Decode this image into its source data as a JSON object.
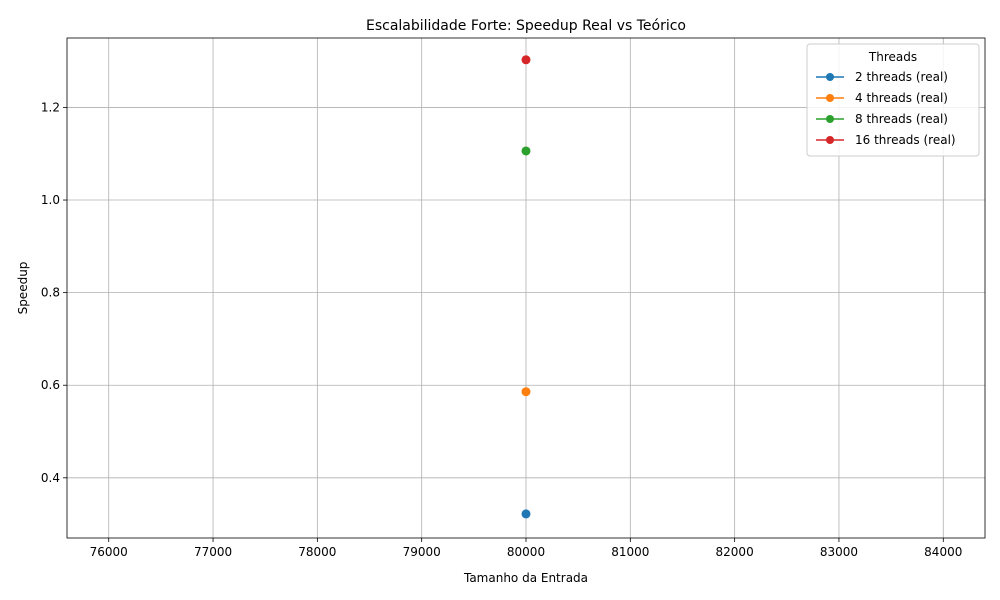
{
  "chart_data": {
    "type": "line",
    "title": "Escalabilidade Forte: Speedup Real vs Teórico",
    "xlabel": "Tamanho da Entrada",
    "ylabel": "Speedup",
    "xlim": [
      75600,
      84400
    ],
    "ylim": [
      0.27,
      1.35
    ],
    "xticks": [
      76000,
      77000,
      78000,
      79000,
      80000,
      81000,
      82000,
      83000,
      84000
    ],
    "yticks": [
      0.4,
      0.6,
      0.8,
      1.0,
      1.2
    ],
    "ytick_labels": [
      "0.4",
      "0.6",
      "0.8",
      "1.0",
      "1.2"
    ],
    "grid": true,
    "legend": {
      "title": "Threads",
      "placement": "top-right"
    },
    "series": [
      {
        "name": "2 threads (real)",
        "color": "#1f77b4",
        "x": [
          80000
        ],
        "y": [
          0.322
        ]
      },
      {
        "name": "4 threads (real)",
        "color": "#ff7f0e",
        "x": [
          80000
        ],
        "y": [
          0.586
        ]
      },
      {
        "name": "8 threads (real)",
        "color": "#2ca02c",
        "x": [
          80000
        ],
        "y": [
          1.106
        ]
      },
      {
        "name": "16 threads (real)",
        "color": "#d62728",
        "x": [
          80000
        ],
        "y": [
          1.303
        ]
      }
    ]
  }
}
